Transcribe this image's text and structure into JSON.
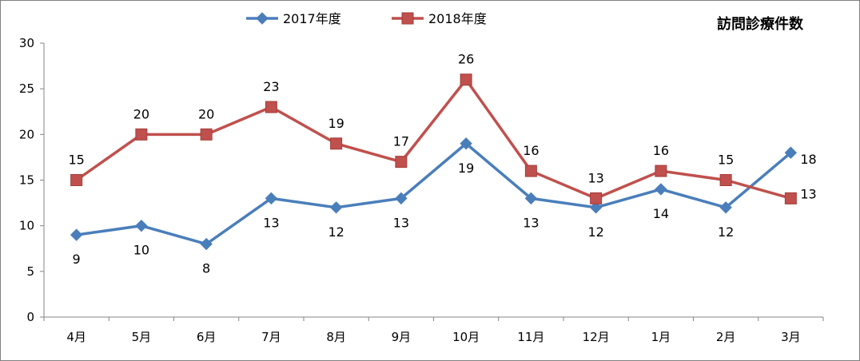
{
  "chart_data": {
    "type": "line",
    "title": "訪問診療件数",
    "categories": [
      "4月",
      "5月",
      "6月",
      "7月",
      "8月",
      "9月",
      "10月",
      "11月",
      "12月",
      "1月",
      "2月",
      "3月"
    ],
    "series": [
      {
        "name": "2017年度",
        "values": [
          9,
          10,
          8,
          13,
          12,
          13,
          19,
          13,
          12,
          14,
          12,
          18
        ],
        "color": "#4a7ebb",
        "marker": "diamond",
        "label_pos": [
          "below",
          "below",
          "below",
          "below",
          "below",
          "below",
          "below",
          "below",
          "below",
          "below",
          "below",
          "right"
        ]
      },
      {
        "name": "2018年度",
        "values": [
          15,
          20,
          20,
          23,
          19,
          17,
          26,
          16,
          13,
          16,
          15,
          13
        ],
        "color": "#c0504d",
        "marker": "square",
        "label_pos": [
          "above",
          "above",
          "above",
          "above",
          "above",
          "above",
          "above",
          "above",
          "above",
          "above",
          "above",
          "right"
        ]
      }
    ],
    "ylim": [
      0,
      30
    ],
    "yticks": [
      0,
      5,
      10,
      15,
      20,
      25,
      30
    ],
    "grid": false,
    "legend": "top-center",
    "xlabel": "",
    "ylabel": ""
  }
}
